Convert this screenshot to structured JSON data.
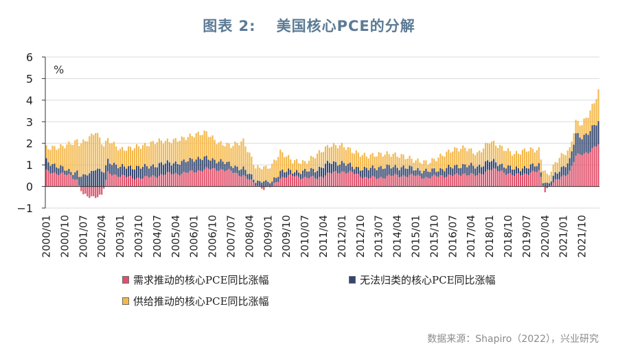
{
  "title": {
    "prefix": "图表 2:",
    "text": "美国核心PCE的分解"
  },
  "source": "数据来源：Shapiro（2022），兴业研究",
  "chart_data": {
    "type": "bar",
    "stacked": true,
    "frequency": "monthly",
    "start": "2000/01",
    "end": "2022/06",
    "ylabel": "%",
    "ylim": [
      -1,
      6
    ],
    "yticks": [
      -1,
      0,
      1,
      2,
      3,
      4,
      5,
      6
    ],
    "yticklabels": [
      "−1",
      "0",
      "1",
      "2",
      "3",
      "4",
      "5",
      "6"
    ],
    "xticklabels": [
      "2000/01",
      "2000/10",
      "2001/07",
      "2002/04",
      "2003/01",
      "2003/10",
      "2004/07",
      "2005/04",
      "2006/01",
      "2006/10",
      "2007/07",
      "2008/04",
      "2009/01",
      "2009/10",
      "2010/07",
      "2011/04",
      "2012/01",
      "2012/10",
      "2013/07",
      "2014/04",
      "2015/01",
      "2015/10",
      "2016/07",
      "2017/04",
      "2018/01",
      "2018/10",
      "2019/07",
      "2020/04",
      "2021/01",
      "2021/10"
    ],
    "grid": "horizontal",
    "legend_position": "bottom-left",
    "series": [
      {
        "name": "需求推动的核心PCE同比涨幅",
        "color": "#e0506a",
        "anchors": [
          [
            0,
            0.7
          ],
          [
            6,
            0.6
          ],
          [
            12,
            0.5
          ],
          [
            15,
            0.3
          ],
          [
            18,
            -0.4
          ],
          [
            21,
            -0.5
          ],
          [
            27,
            -0.4
          ],
          [
            30,
            0.6
          ],
          [
            36,
            0.5
          ],
          [
            42,
            0.4
          ],
          [
            48,
            0.4
          ],
          [
            54,
            0.5
          ],
          [
            60,
            0.6
          ],
          [
            66,
            0.6
          ],
          [
            72,
            0.7
          ],
          [
            78,
            0.8
          ],
          [
            84,
            0.8
          ],
          [
            90,
            0.7
          ],
          [
            96,
            0.5
          ],
          [
            102,
            0.1
          ],
          [
            106,
            -0.1
          ],
          [
            110,
            0.0
          ],
          [
            114,
            0.4
          ],
          [
            120,
            0.5
          ],
          [
            126,
            0.4
          ],
          [
            132,
            0.4
          ],
          [
            138,
            0.6
          ],
          [
            144,
            0.7
          ],
          [
            150,
            0.6
          ],
          [
            156,
            0.4
          ],
          [
            162,
            0.4
          ],
          [
            168,
            0.5
          ],
          [
            174,
            0.5
          ],
          [
            180,
            0.5
          ],
          [
            186,
            0.4
          ],
          [
            192,
            0.5
          ],
          [
            198,
            0.5
          ],
          [
            204,
            0.6
          ],
          [
            210,
            0.5
          ],
          [
            216,
            0.8
          ],
          [
            222,
            0.7
          ],
          [
            228,
            0.5
          ],
          [
            234,
            0.6
          ],
          [
            240,
            0.7
          ],
          [
            243,
            -0.2
          ],
          [
            246,
            0.1
          ],
          [
            252,
            0.5
          ],
          [
            255,
            0.7
          ],
          [
            258,
            1.4
          ],
          [
            261,
            1.5
          ],
          [
            264,
            1.6
          ],
          [
            267,
            1.8
          ],
          [
            270,
            2.0
          ],
          [
            273,
            1.9
          ],
          [
            276,
            1.7
          ]
        ]
      },
      {
        "name": "无法归类的核心PCE同比涨幅",
        "color": "#34466e",
        "anchors": [
          [
            0,
            0.5
          ],
          [
            6,
            0.3
          ],
          [
            12,
            0.2
          ],
          [
            18,
            0.5
          ],
          [
            24,
            0.8
          ],
          [
            30,
            0.6
          ],
          [
            36,
            0.4
          ],
          [
            42,
            0.5
          ],
          [
            48,
            0.5
          ],
          [
            54,
            0.5
          ],
          [
            60,
            0.5
          ],
          [
            66,
            0.5
          ],
          [
            72,
            0.6
          ],
          [
            78,
            0.5
          ],
          [
            84,
            0.4
          ],
          [
            90,
            0.3
          ],
          [
            96,
            0.3
          ],
          [
            102,
            0.2
          ],
          [
            108,
            0.2
          ],
          [
            114,
            0.3
          ],
          [
            120,
            0.2
          ],
          [
            126,
            0.3
          ],
          [
            132,
            0.4
          ],
          [
            138,
            0.5
          ],
          [
            144,
            0.4
          ],
          [
            150,
            0.3
          ],
          [
            156,
            0.4
          ],
          [
            162,
            0.5
          ],
          [
            168,
            0.4
          ],
          [
            174,
            0.4
          ],
          [
            180,
            0.3
          ],
          [
            186,
            0.3
          ],
          [
            192,
            0.3
          ],
          [
            198,
            0.4
          ],
          [
            204,
            0.4
          ],
          [
            210,
            0.4
          ],
          [
            216,
            0.4
          ],
          [
            222,
            0.3
          ],
          [
            228,
            0.3
          ],
          [
            234,
            0.3
          ],
          [
            240,
            0.3
          ],
          [
            244,
            0.1
          ],
          [
            250,
            0.4
          ],
          [
            255,
            0.5
          ],
          [
            258,
            1.0
          ],
          [
            261,
            0.8
          ],
          [
            264,
            0.9
          ],
          [
            267,
            1.0
          ],
          [
            270,
            1.1
          ],
          [
            273,
            1.0
          ],
          [
            276,
            0.9
          ]
        ]
      },
      {
        "name": "供给推动的核心PCE同比涨幅",
        "color": "#f3b84c",
        "anchors": [
          [
            0,
            0.6
          ],
          [
            6,
            0.9
          ],
          [
            12,
            1.3
          ],
          [
            18,
            1.6
          ],
          [
            24,
            1.7
          ],
          [
            30,
            1.0
          ],
          [
            36,
            0.8
          ],
          [
            42,
            0.9
          ],
          [
            48,
            1.0
          ],
          [
            54,
            1.1
          ],
          [
            60,
            1.0
          ],
          [
            66,
            1.1
          ],
          [
            72,
            1.1
          ],
          [
            78,
            1.2
          ],
          [
            84,
            0.8
          ],
          [
            90,
            0.9
          ],
          [
            96,
            1.3
          ],
          [
            102,
            0.6
          ],
          [
            108,
            0.7
          ],
          [
            114,
            0.9
          ],
          [
            120,
            0.5
          ],
          [
            126,
            0.4
          ],
          [
            132,
            0.7
          ],
          [
            138,
            0.8
          ],
          [
            144,
            0.8
          ],
          [
            150,
            0.7
          ],
          [
            156,
            0.6
          ],
          [
            162,
            0.6
          ],
          [
            168,
            0.6
          ],
          [
            174,
            0.5
          ],
          [
            180,
            0.4
          ],
          [
            186,
            0.4
          ],
          [
            192,
            0.6
          ],
          [
            198,
            0.8
          ],
          [
            204,
            0.8
          ],
          [
            210,
            0.6
          ],
          [
            216,
            0.9
          ],
          [
            222,
            0.8
          ],
          [
            228,
            0.7
          ],
          [
            234,
            0.8
          ],
          [
            240,
            0.7
          ],
          [
            244,
            0.4
          ],
          [
            250,
            0.6
          ],
          [
            255,
            0.5
          ],
          [
            258,
            0.6
          ],
          [
            261,
            0.6
          ],
          [
            264,
            0.8
          ],
          [
            267,
            1.1
          ],
          [
            270,
            1.6
          ],
          [
            273,
            2.2
          ],
          [
            276,
            2.0
          ]
        ]
      }
    ]
  }
}
